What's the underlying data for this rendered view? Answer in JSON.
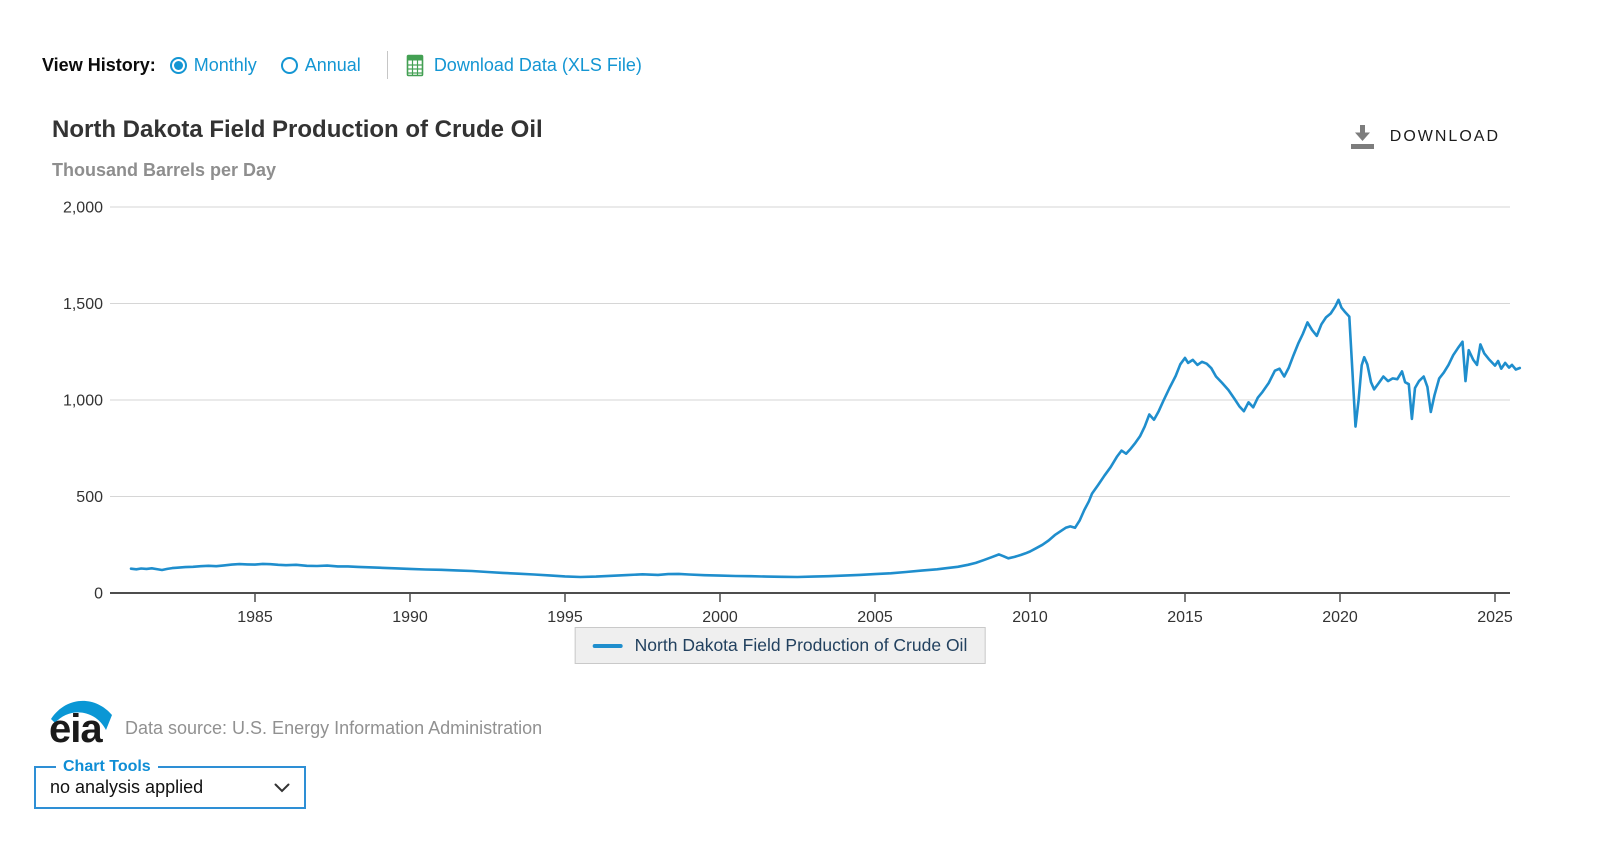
{
  "view_history": {
    "label": "View History:",
    "options": [
      {
        "label": "Monthly",
        "selected": true
      },
      {
        "label": "Annual",
        "selected": false
      }
    ],
    "download_data_link": "Download Data (XLS File)"
  },
  "chart_header": {
    "title": "North Dakota Field Production of Crude Oil",
    "units": "Thousand Barrels per Day",
    "download_button": "DOWNLOAD"
  },
  "legend": {
    "series_label": "North Dakota Field Production of Crude Oil"
  },
  "footer": {
    "logo_text": "eia",
    "data_source": "Data source: U.S. Energy Information Administration"
  },
  "chart_tools": {
    "label": "Chart Tools",
    "selected_option": "no analysis applied"
  },
  "colors": {
    "accent_blue": "#1496d3",
    "series_line": "#1f8ecd",
    "axis_text": "#333333",
    "gridline": "#d6d6d6",
    "axis_line": "#4d4d4d",
    "legend_text": "#22415f"
  },
  "chart_data": {
    "type": "line",
    "title": "North Dakota Field Production of Crude Oil",
    "ylabel": "Thousand Barrels per Day",
    "xlabel": "",
    "xlim": [
      1981,
      2026.2
    ],
    "ylim": [
      0,
      2000
    ],
    "grid": true,
    "legend_position": "bottom",
    "y_ticks": [
      0,
      500,
      1000,
      1500,
      2000
    ],
    "y_tick_labels": [
      "0",
      "500",
      "1,000",
      "1,500",
      "2,000"
    ],
    "x_ticks": [
      1985,
      1990,
      1995,
      2000,
      2005,
      2010,
      2015,
      2020,
      2025
    ],
    "x_tick_labels": [
      "1985",
      "1990",
      "1995",
      "2000",
      "2005",
      "2010",
      "2015",
      "2020",
      "2025"
    ],
    "series": [
      {
        "name": "North Dakota Field Production of Crude Oil",
        "color": "#1f8ecd",
        "points": [
          [
            1981.0,
            126
          ],
          [
            1981.17,
            123
          ],
          [
            1981.33,
            127
          ],
          [
            1981.5,
            125
          ],
          [
            1981.67,
            128
          ],
          [
            1981.83,
            124
          ],
          [
            1982.0,
            119
          ],
          [
            1982.17,
            125
          ],
          [
            1982.33,
            129
          ],
          [
            1982.5,
            131
          ],
          [
            1982.75,
            134
          ],
          [
            1983.0,
            136
          ],
          [
            1983.25,
            139
          ],
          [
            1983.5,
            141
          ],
          [
            1983.75,
            139
          ],
          [
            1984.0,
            143
          ],
          [
            1984.25,
            147
          ],
          [
            1984.5,
            150
          ],
          [
            1984.75,
            148
          ],
          [
            1985.0,
            147
          ],
          [
            1985.25,
            151
          ],
          [
            1985.5,
            149
          ],
          [
            1985.75,
            146
          ],
          [
            1986.0,
            144
          ],
          [
            1986.33,
            146
          ],
          [
            1986.67,
            141
          ],
          [
            1987.0,
            140
          ],
          [
            1987.33,
            142
          ],
          [
            1987.67,
            138
          ],
          [
            1988.0,
            138
          ],
          [
            1988.33,
            135
          ],
          [
            1988.67,
            133
          ],
          [
            1989.0,
            131
          ],
          [
            1989.5,
            128
          ],
          [
            1990.0,
            125
          ],
          [
            1990.5,
            122
          ],
          [
            1991.0,
            120
          ],
          [
            1991.5,
            117
          ],
          [
            1992.0,
            114
          ],
          [
            1992.5,
            109
          ],
          [
            1993.0,
            104
          ],
          [
            1993.5,
            100
          ],
          [
            1994.0,
            96
          ],
          [
            1994.5,
            91
          ],
          [
            1995.0,
            86
          ],
          [
            1995.5,
            83
          ],
          [
            1996.0,
            85
          ],
          [
            1996.5,
            89
          ],
          [
            1997.0,
            93
          ],
          [
            1997.5,
            97
          ],
          [
            1998.0,
            94
          ],
          [
            1998.33,
            98
          ],
          [
            1998.67,
            99
          ],
          [
            1999.0,
            96
          ],
          [
            1999.5,
            92
          ],
          [
            2000.0,
            90
          ],
          [
            2000.5,
            88
          ],
          [
            2001.0,
            87
          ],
          [
            2001.5,
            85
          ],
          [
            2002.0,
            84
          ],
          [
            2002.5,
            83
          ],
          [
            2003.0,
            85
          ],
          [
            2003.5,
            87
          ],
          [
            2004.0,
            90
          ],
          [
            2004.5,
            94
          ],
          [
            2005.0,
            98
          ],
          [
            2005.5,
            102
          ],
          [
            2006.0,
            109
          ],
          [
            2006.5,
            116
          ],
          [
            2007.0,
            123
          ],
          [
            2007.33,
            129
          ],
          [
            2007.67,
            136
          ],
          [
            2008.0,
            146
          ],
          [
            2008.25,
            156
          ],
          [
            2008.5,
            170
          ],
          [
            2008.75,
            185
          ],
          [
            2009.0,
            200
          ],
          [
            2009.15,
            190
          ],
          [
            2009.3,
            180
          ],
          [
            2009.5,
            187
          ],
          [
            2009.7,
            197
          ],
          [
            2009.85,
            205
          ],
          [
            2010.0,
            215
          ],
          [
            2010.2,
            232
          ],
          [
            2010.4,
            250
          ],
          [
            2010.6,
            272
          ],
          [
            2010.8,
            300
          ],
          [
            2011.0,
            322
          ],
          [
            2011.15,
            338
          ],
          [
            2011.3,
            345
          ],
          [
            2011.45,
            338
          ],
          [
            2011.6,
            375
          ],
          [
            2011.75,
            430
          ],
          [
            2011.9,
            475
          ],
          [
            2012.0,
            515
          ],
          [
            2012.2,
            560
          ],
          [
            2012.4,
            608
          ],
          [
            2012.6,
            652
          ],
          [
            2012.8,
            705
          ],
          [
            2012.95,
            738
          ],
          [
            2013.1,
            722
          ],
          [
            2013.25,
            748
          ],
          [
            2013.4,
            778
          ],
          [
            2013.55,
            812
          ],
          [
            2013.7,
            862
          ],
          [
            2013.85,
            925
          ],
          [
            2014.0,
            898
          ],
          [
            2014.15,
            942
          ],
          [
            2014.3,
            995
          ],
          [
            2014.5,
            1062
          ],
          [
            2014.7,
            1125
          ],
          [
            2014.85,
            1185
          ],
          [
            2015.0,
            1218
          ],
          [
            2015.1,
            1192
          ],
          [
            2015.25,
            1208
          ],
          [
            2015.4,
            1182
          ],
          [
            2015.55,
            1198
          ],
          [
            2015.7,
            1188
          ],
          [
            2015.85,
            1165
          ],
          [
            2016.0,
            1122
          ],
          [
            2016.2,
            1088
          ],
          [
            2016.4,
            1052
          ],
          [
            2016.6,
            1005
          ],
          [
            2016.75,
            968
          ],
          [
            2016.9,
            942
          ],
          [
            2017.05,
            988
          ],
          [
            2017.2,
            962
          ],
          [
            2017.35,
            1012
          ],
          [
            2017.5,
            1042
          ],
          [
            2017.7,
            1088
          ],
          [
            2017.9,
            1152
          ],
          [
            2018.05,
            1162
          ],
          [
            2018.2,
            1122
          ],
          [
            2018.35,
            1168
          ],
          [
            2018.5,
            1232
          ],
          [
            2018.65,
            1292
          ],
          [
            2018.8,
            1342
          ],
          [
            2018.95,
            1402
          ],
          [
            2019.1,
            1362
          ],
          [
            2019.25,
            1332
          ],
          [
            2019.4,
            1392
          ],
          [
            2019.55,
            1428
          ],
          [
            2019.7,
            1448
          ],
          [
            2019.85,
            1485
          ],
          [
            2019.95,
            1519
          ],
          [
            2020.05,
            1478
          ],
          [
            2020.15,
            1458
          ],
          [
            2020.3,
            1432
          ],
          [
            2020.4,
            1150
          ],
          [
            2020.5,
            862
          ],
          [
            2020.6,
            1000
          ],
          [
            2020.7,
            1180
          ],
          [
            2020.78,
            1222
          ],
          [
            2020.88,
            1185
          ],
          [
            2021.0,
            1092
          ],
          [
            2021.1,
            1055
          ],
          [
            2021.25,
            1088
          ],
          [
            2021.4,
            1122
          ],
          [
            2021.55,
            1098
          ],
          [
            2021.7,
            1112
          ],
          [
            2021.85,
            1108
          ],
          [
            2022.0,
            1148
          ],
          [
            2022.1,
            1092
          ],
          [
            2022.22,
            1082
          ],
          [
            2022.32,
            902
          ],
          [
            2022.42,
            1062
          ],
          [
            2022.55,
            1098
          ],
          [
            2022.7,
            1122
          ],
          [
            2022.82,
            1068
          ],
          [
            2022.93,
            938
          ],
          [
            2023.05,
            1025
          ],
          [
            2023.2,
            1112
          ],
          [
            2023.35,
            1142
          ],
          [
            2023.5,
            1182
          ],
          [
            2023.65,
            1232
          ],
          [
            2023.8,
            1268
          ],
          [
            2023.95,
            1302
          ],
          [
            2024.05,
            1098
          ],
          [
            2024.15,
            1258
          ],
          [
            2024.3,
            1208
          ],
          [
            2024.42,
            1182
          ],
          [
            2024.53,
            1288
          ],
          [
            2024.65,
            1242
          ],
          [
            2024.8,
            1212
          ],
          [
            2025.0,
            1178
          ],
          [
            2025.1,
            1202
          ],
          [
            2025.2,
            1162
          ],
          [
            2025.33,
            1192
          ],
          [
            2025.45,
            1168
          ],
          [
            2025.55,
            1182
          ],
          [
            2025.67,
            1158
          ],
          [
            2025.8,
            1166
          ]
        ]
      }
    ]
  }
}
